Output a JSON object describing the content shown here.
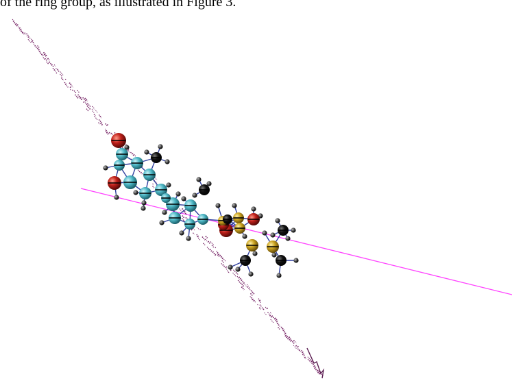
{
  "caption": "of the ring group, as illustrated in Figure 3.",
  "colors": {
    "background": "#ffffff",
    "axis_line": "#ff44ff",
    "trajectory": "#7a2a6a",
    "carbon_ring": "#4fb8c6",
    "carbon_side": "#c9a11f",
    "oxygen": "#c0201a",
    "dark_atom": "#111111",
    "hydrogen": "#333333",
    "bond": "#2f3f9f"
  }
}
